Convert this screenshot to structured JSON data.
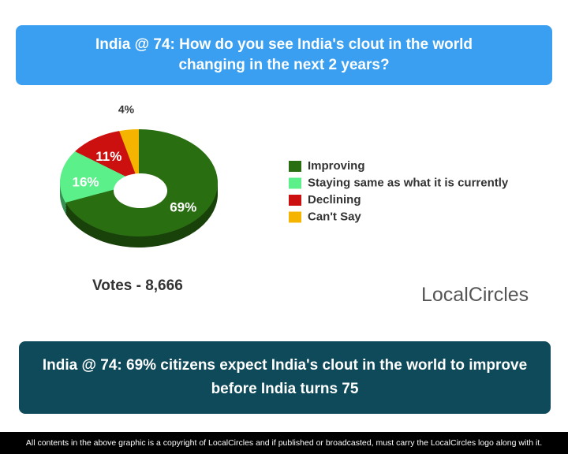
{
  "chart_data": {
    "type": "pie",
    "title": "India @ 74: How do you see India's clout in the world changing in the next 2 years?",
    "categories": [
      "Improving",
      "Staying same as what it is currently",
      "Declining",
      "Can't Say"
    ],
    "values": [
      69,
      16,
      11,
      4
    ],
    "value_labels": [
      "69%",
      "16%",
      "11%",
      "4%"
    ],
    "colors": [
      "#2a6e12",
      "#5cf08a",
      "#cc1010",
      "#f5b400"
    ]
  },
  "votes": "Votes - 8,666",
  "logo": "LocalCircles",
  "conclusion": "India @ 74: 69% citizens expect India's clout in the world to improve before India turns 75",
  "footer": "All contents in the above graphic is a copyright of LocalCircles and if published or broadcasted, must carry the LocalCircles logo along with it."
}
